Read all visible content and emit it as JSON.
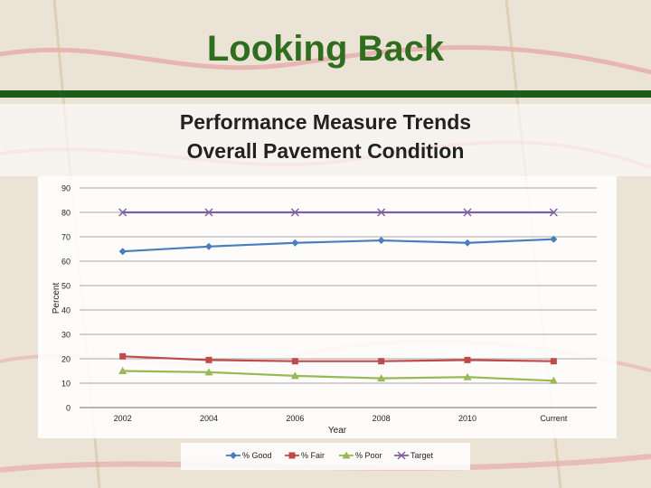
{
  "slide": {
    "title": "Looking Back",
    "subtitle_line1": "Performance Measure Trends",
    "subtitle_line2": "Overall Pavement Condition"
  },
  "colors": {
    "title": "#2f6e1f",
    "bar": "#1e5c1a",
    "good": "#4a7ebb",
    "fair": "#be4b48",
    "poor": "#98b954",
    "target": "#7d60a0"
  },
  "chart_data": {
    "type": "line",
    "categories": [
      "2002",
      "2004",
      "2006",
      "2008",
      "2010",
      "Current"
    ],
    "series": [
      {
        "name": "% Good",
        "values": [
          64,
          66,
          67.5,
          68.5,
          67.5,
          69
        ],
        "marker": "diamond"
      },
      {
        "name": "% Fair",
        "values": [
          21,
          19.5,
          19,
          19,
          19.5,
          19
        ],
        "marker": "square"
      },
      {
        "name": "% Poor",
        "values": [
          15,
          14.5,
          13,
          12,
          12.5,
          11
        ],
        "marker": "triangle"
      },
      {
        "name": "Target",
        "values": [
          80,
          80,
          80,
          80,
          80,
          80
        ],
        "marker": "x"
      }
    ],
    "xlabel": "Year",
    "ylabel": "Percent",
    "ylim": [
      0,
      90
    ],
    "yticks": [
      0,
      10,
      20,
      30,
      40,
      50,
      60,
      70,
      80,
      90
    ],
    "grid": true,
    "legend": "bottom"
  }
}
